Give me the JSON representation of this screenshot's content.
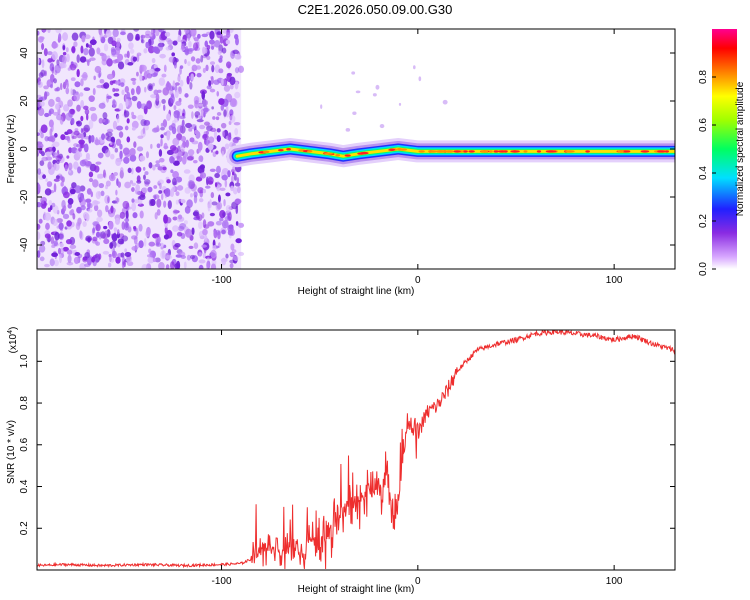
{
  "title": "C2E1.2026.050.09.00.G30",
  "chart_data": [
    {
      "type": "heatmap",
      "xlabel": "Height of straight line (km)",
      "ylabel": "Frequency (Hz)",
      "xlim": [
        -194,
        131
      ],
      "ylim": [
        -50,
        50
      ],
      "xticks": [
        -100,
        0,
        100
      ],
      "yticks": [
        -40,
        -20,
        0,
        20,
        40
      ],
      "noise_region_x": [
        -194,
        -90
      ],
      "signal_trace": {
        "x": [
          -92,
          -85,
          -75,
          -65,
          -55,
          -45,
          -38,
          -30,
          -20,
          -10,
          0,
          10,
          20,
          40,
          60,
          80,
          100,
          120,
          131
        ],
        "y": [
          -3,
          -2,
          -1,
          0,
          -1,
          -2,
          -3,
          -2,
          -1,
          0,
          -1,
          -1,
          -1,
          -1,
          -1,
          -1,
          -1,
          -1,
          -1
        ]
      },
      "colorbar": {
        "label": "Normalized spectral amplitude",
        "range": [
          0,
          1
        ],
        "ticks": [
          0.0,
          0.2,
          0.4,
          0.6,
          0.8
        ],
        "tick_labels": [
          "0.0",
          "0.2",
          "0.4",
          "0.6",
          "0.8"
        ]
      }
    },
    {
      "type": "line",
      "xlabel": "Height of straight line (km)",
      "ylabel": "SNR (10 * v/v)",
      "multiplier_label": "(x10",
      "multiplier_exponent": "4",
      "multiplier_close": ")",
      "xlim": [
        -194,
        131
      ],
      "ylim": [
        0,
        1.15
      ],
      "xticks": [
        -100,
        0,
        100
      ],
      "yticks": [
        0.2,
        0.4,
        0.6,
        0.8,
        1.0
      ],
      "series": [
        {
          "name": "SNR",
          "color": "#ee2e2e",
          "x": [
            -194,
            -180,
            -160,
            -140,
            -120,
            -100,
            -90,
            -85,
            -80,
            -75,
            -70,
            -65,
            -60,
            -55,
            -50,
            -45,
            -40,
            -35,
            -30,
            -25,
            -20,
            -15,
            -12,
            -10,
            -8,
            -5,
            0,
            5,
            10,
            15,
            20,
            30,
            40,
            50,
            60,
            70,
            80,
            90,
            100,
            110,
            120,
            131
          ],
          "values": [
            0.02,
            0.025,
            0.02,
            0.025,
            0.02,
            0.025,
            0.03,
            0.05,
            0.1,
            0.1,
            0.08,
            0.12,
            0.08,
            0.15,
            0.12,
            0.18,
            0.25,
            0.35,
            0.3,
            0.4,
            0.35,
            0.45,
            0.2,
            0.3,
            0.5,
            0.7,
            0.65,
            0.75,
            0.78,
            0.85,
            0.95,
            1.05,
            1.08,
            1.1,
            1.13,
            1.14,
            1.13,
            1.12,
            1.1,
            1.12,
            1.08,
            1.05
          ]
        }
      ]
    }
  ]
}
